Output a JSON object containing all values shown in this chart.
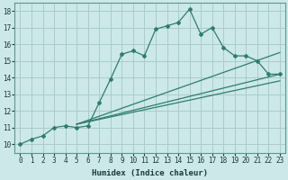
{
  "xlabel": "Humidex (Indice chaleur)",
  "bg_color": "#cce8e8",
  "grid_color": "#aacccc",
  "line_color": "#2e7d6e",
  "xlim": [
    -0.5,
    23.5
  ],
  "ylim": [
    9.5,
    18.5
  ],
  "xticks": [
    0,
    1,
    2,
    3,
    4,
    5,
    6,
    7,
    8,
    9,
    10,
    11,
    12,
    13,
    14,
    15,
    16,
    17,
    18,
    19,
    20,
    21,
    22,
    23
  ],
  "yticks": [
    10,
    11,
    12,
    13,
    14,
    15,
    16,
    17,
    18
  ],
  "line1_x": [
    0,
    1,
    2,
    3,
    4,
    5,
    6,
    7,
    8,
    9,
    10,
    11,
    12,
    13,
    14,
    15,
    16,
    17,
    18,
    19,
    20,
    21,
    22,
    23
  ],
  "line1_y": [
    10.0,
    10.3,
    10.5,
    11.0,
    11.1,
    11.0,
    11.1,
    12.5,
    13.9,
    15.4,
    15.6,
    15.3,
    16.9,
    17.1,
    17.3,
    18.1,
    16.6,
    17.0,
    15.8,
    15.3,
    15.3,
    15.0,
    14.2,
    14.2
  ],
  "line2_x": [
    5,
    23
  ],
  "line2_y": [
    11.2,
    15.5
  ],
  "line3_x": [
    5,
    23
  ],
  "line3_y": [
    11.2,
    14.2
  ],
  "line4_x": [
    5,
    23
  ],
  "line4_y": [
    11.2,
    13.8
  ]
}
